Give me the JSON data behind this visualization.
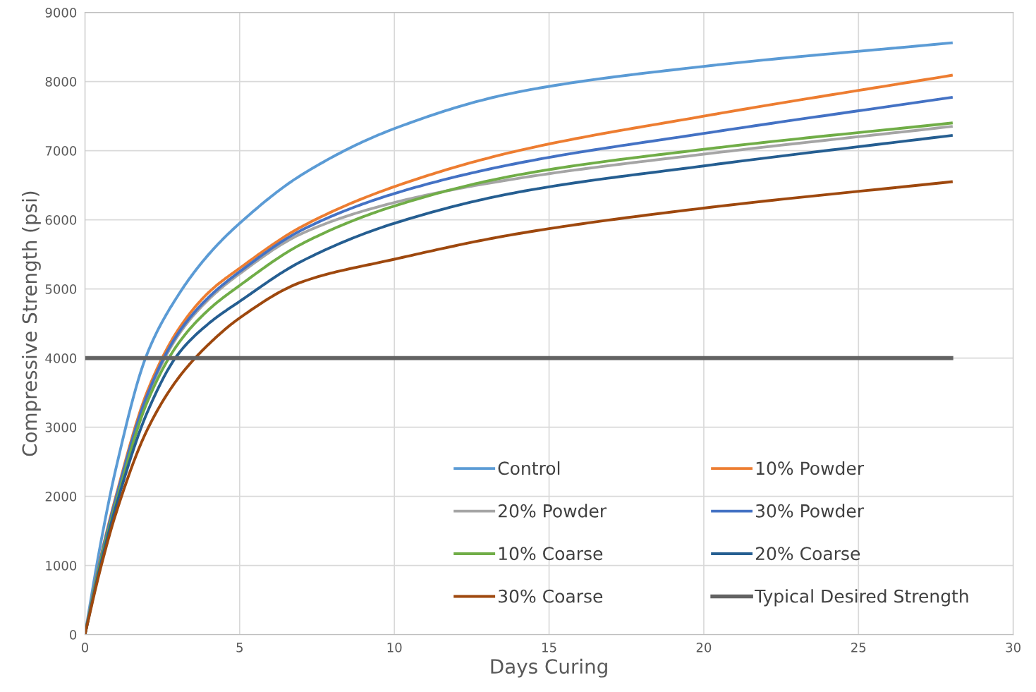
{
  "chart_data": {
    "type": "line",
    "xlabel": "Days Curing",
    "ylabel": "Compressive Strength (psi)",
    "xlim": [
      0,
      30
    ],
    "xticks": [
      0,
      5,
      10,
      15,
      20,
      25,
      30
    ],
    "ylim": [
      0,
      9000
    ],
    "yticks": [
      0,
      1000,
      2000,
      3000,
      4000,
      5000,
      6000,
      7000,
      8000,
      9000
    ],
    "grid": true,
    "legend": "bottom right",
    "x": [
      0,
      0.5,
      1,
      2,
      3,
      4,
      5,
      7,
      10,
      14,
      20,
      28
    ],
    "series": [
      {
        "name": "Control",
        "color": "#5b9bd5",
        "values": [
          0,
          1300,
          2400,
          4050,
          4900,
          5500,
          5950,
          6650,
          7320,
          7850,
          8220,
          8560
        ]
      },
      {
        "name": "10% Powder",
        "color": "#ed7d31",
        "values": [
          0,
          1100,
          2000,
          3500,
          4400,
          4950,
          5300,
          5900,
          6480,
          7000,
          7500,
          8090
        ]
      },
      {
        "name": "20% Powder",
        "color": "#a5a5a5",
        "values": [
          0,
          1060,
          null,
          3420,
          4320,
          4850,
          5220,
          5800,
          6250,
          6600,
          6950,
          7350
        ]
      },
      {
        "name": "30% Powder",
        "color": "#4472c4",
        "values": [
          0,
          1080,
          1970,
          3450,
          4350,
          4880,
          5250,
          5850,
          6380,
          6820,
          7250,
          7770
        ]
      },
      {
        "name": "10% Coarse",
        "color": "#70ad47",
        "values": [
          0,
          1050,
          1900,
          3350,
          4200,
          4700,
          5050,
          5650,
          6200,
          6650,
          7020,
          7400
        ]
      },
      {
        "name": "20% Coarse",
        "color": "#255e91",
        "values": [
          0,
          1000,
          1850,
          3200,
          4050,
          4500,
          4820,
          5400,
          5950,
          6400,
          6780,
          7220
        ]
      },
      {
        "name": "30% Coarse",
        "color": "#9e480e",
        "values": [
          0,
          950,
          1750,
          2950,
          3700,
          4200,
          4580,
          5100,
          5430,
          5800,
          6170,
          6550
        ]
      },
      {
        "name": "Typical Desired Strength",
        "color": "#636363",
        "x": [
          0,
          28
        ],
        "values": [
          4000,
          4000
        ]
      }
    ]
  }
}
